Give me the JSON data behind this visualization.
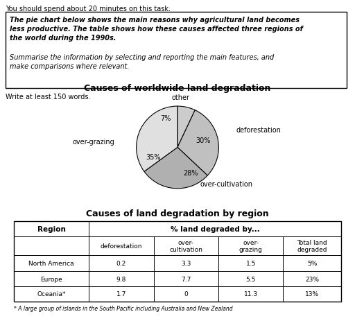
{
  "top_text": "You should spend about 20 minutes on this task.",
  "instruction_bold": "The pie chart below shows the main reasons why agricultural land becomes\nless productive. The table shows how these causes affected three regions of\nthe world during the 1990s.",
  "instruction_normal": "Summarise the information by selecting and reporting the main features, and\nmake comparisons where relevant.",
  "write_text": "Write at least 150 words.",
  "pie_title": "Causes of worldwide land degradation",
  "pie_sizes": [
    7,
    30,
    28,
    35
  ],
  "pie_colors": [
    "#cccccc",
    "#c0c0c0",
    "#b0b0b0",
    "#e0e0e0"
  ],
  "table_title": "Causes of land degradation by region",
  "table_rows": [
    [
      "North America",
      "0.2",
      "3.3",
      "1.5",
      "5%"
    ],
    [
      "Europe",
      "9.8",
      "7.7",
      "5.5",
      "23%"
    ],
    [
      "Oceania*",
      "1.7",
      "0",
      "11.3",
      "13%"
    ]
  ],
  "footnote": "* A large group of islands in the South Pacific including Australia and New Zealand"
}
